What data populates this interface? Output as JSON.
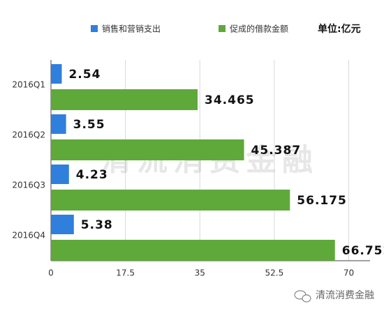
{
  "chart_data": {
    "type": "hbar",
    "unit": "单位:亿元",
    "categories": [
      "2016Q1",
      "2016Q2",
      "2016Q3",
      "2016Q4"
    ],
    "series": [
      {
        "name": "销售和营销支出",
        "color": "#2f7fdc",
        "values": [
          2.54,
          3.55,
          4.23,
          5.38
        ]
      },
      {
        "name": "促成的借款金额",
        "color": "#5fa93a",
        "values": [
          34.465,
          45.387,
          56.175,
          66.752
        ]
      }
    ],
    "xlim": [
      0,
      75
    ],
    "xticks": [
      0,
      17.5,
      35,
      52.5,
      70
    ],
    "grid": true
  },
  "watermark": "清流消费金融",
  "footer": "清流消费金融"
}
